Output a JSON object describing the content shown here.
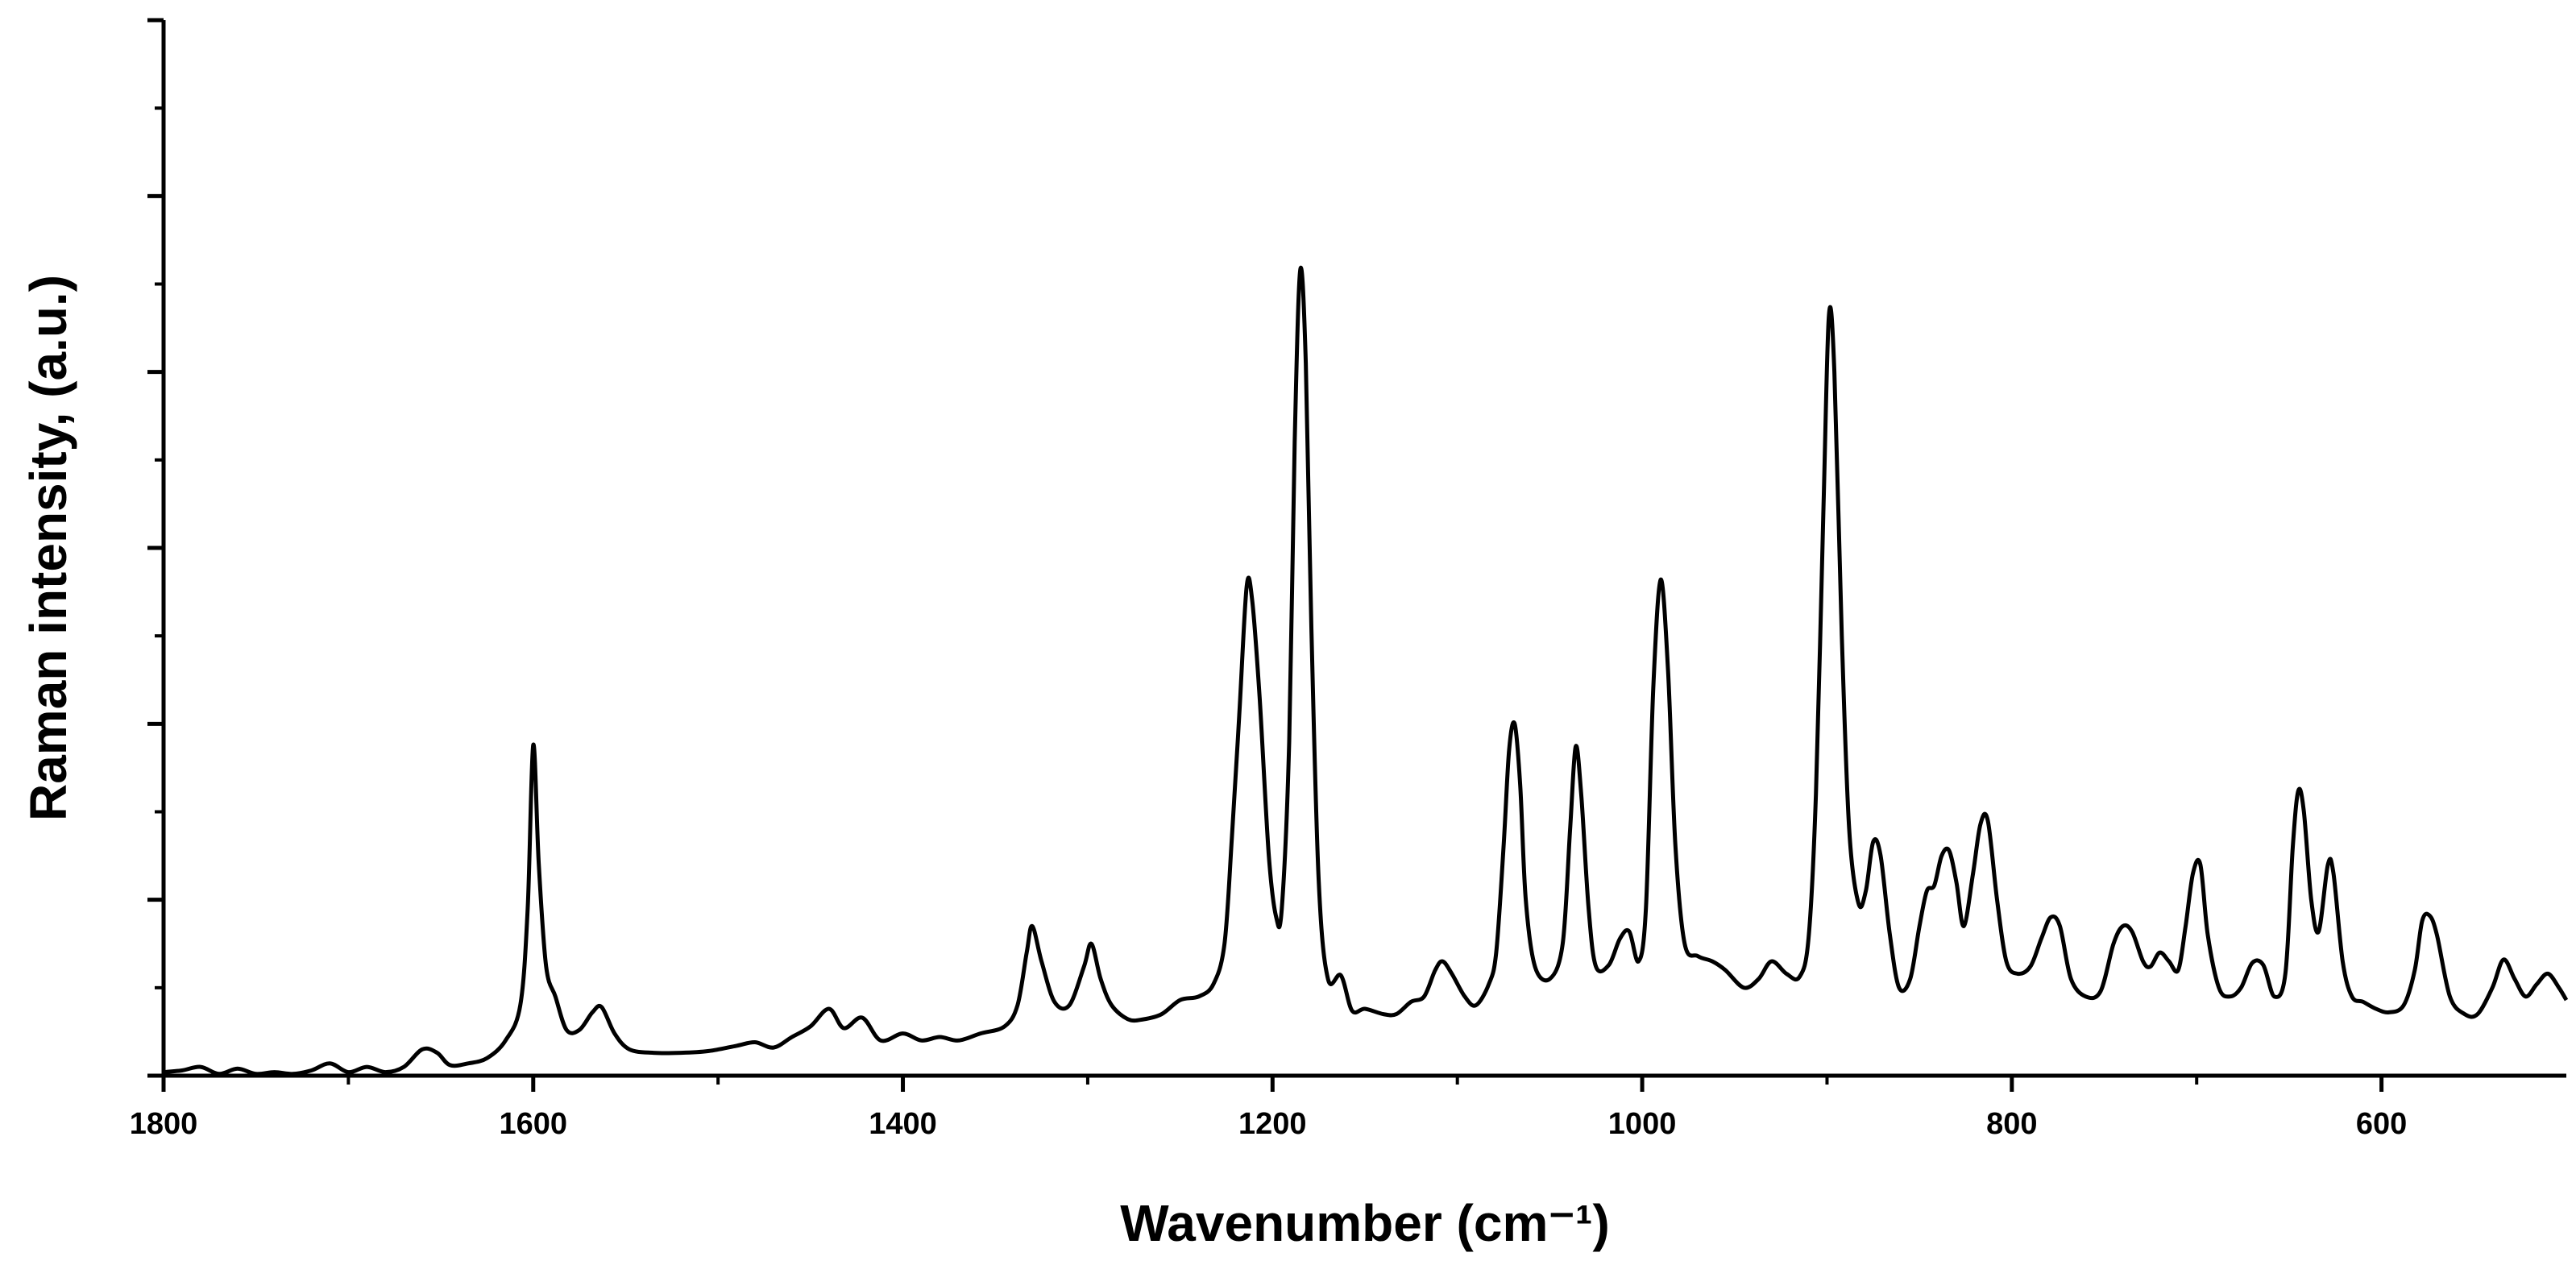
{
  "chart_data": {
    "type": "line",
    "xlabel": "Wavenumber (cm⁻¹)",
    "ylabel": "Raman intensity, (a.u.)",
    "xlim": [
      1800,
      500
    ],
    "x_reversed": true,
    "ylim": [
      0,
      6
    ],
    "x_ticks": [
      1800,
      1600,
      1400,
      1200,
      1000,
      800,
      600
    ],
    "y_tick_labels_shown": false,
    "grid": false,
    "legend": "none",
    "line_color": "#000000",
    "series": [
      {
        "points": [
          [
            1800,
            0.02
          ],
          [
            1790,
            0.03
          ],
          [
            1780,
            0.05
          ],
          [
            1770,
            0.01
          ],
          [
            1760,
            0.04
          ],
          [
            1750,
            0.01
          ],
          [
            1740,
            0.02
          ],
          [
            1730,
            0.01
          ],
          [
            1720,
            0.03
          ],
          [
            1710,
            0.07
          ],
          [
            1700,
            0.02
          ],
          [
            1690,
            0.05
          ],
          [
            1680,
            0.02
          ],
          [
            1670,
            0.05
          ],
          [
            1660,
            0.15
          ],
          [
            1652,
            0.13
          ],
          [
            1645,
            0.06
          ],
          [
            1635,
            0.07
          ],
          [
            1625,
            0.1
          ],
          [
            1615,
            0.2
          ],
          [
            1607,
            0.4
          ],
          [
            1603,
            0.95
          ],
          [
            1600,
            1.88
          ],
          [
            1597,
            1.2
          ],
          [
            1593,
            0.62
          ],
          [
            1588,
            0.45
          ],
          [
            1582,
            0.26
          ],
          [
            1575,
            0.26
          ],
          [
            1568,
            0.36
          ],
          [
            1563,
            0.39
          ],
          [
            1556,
            0.24
          ],
          [
            1548,
            0.15
          ],
          [
            1535,
            0.13
          ],
          [
            1520,
            0.13
          ],
          [
            1505,
            0.14
          ],
          [
            1490,
            0.17
          ],
          [
            1480,
            0.19
          ],
          [
            1470,
            0.16
          ],
          [
            1460,
            0.22
          ],
          [
            1450,
            0.28
          ],
          [
            1440,
            0.38
          ],
          [
            1432,
            0.27
          ],
          [
            1422,
            0.33
          ],
          [
            1412,
            0.2
          ],
          [
            1400,
            0.24
          ],
          [
            1390,
            0.2
          ],
          [
            1380,
            0.22
          ],
          [
            1370,
            0.2
          ],
          [
            1358,
            0.24
          ],
          [
            1345,
            0.28
          ],
          [
            1338,
            0.4
          ],
          [
            1333,
            0.7
          ],
          [
            1330,
            0.85
          ],
          [
            1325,
            0.65
          ],
          [
            1318,
            0.42
          ],
          [
            1310,
            0.4
          ],
          [
            1302,
            0.62
          ],
          [
            1298,
            0.75
          ],
          [
            1293,
            0.55
          ],
          [
            1287,
            0.4
          ],
          [
            1278,
            0.32
          ],
          [
            1270,
            0.32
          ],
          [
            1260,
            0.35
          ],
          [
            1250,
            0.43
          ],
          [
            1240,
            0.45
          ],
          [
            1232,
            0.52
          ],
          [
            1226,
            0.75
          ],
          [
            1222,
            1.35
          ],
          [
            1218,
            2.05
          ],
          [
            1214,
            2.78
          ],
          [
            1211,
            2.7
          ],
          [
            1207,
            2.15
          ],
          [
            1202,
            1.25
          ],
          [
            1198,
            0.9
          ],
          [
            1195,
            0.95
          ],
          [
            1191,
            1.9
          ],
          [
            1188,
            3.6
          ],
          [
            1185,
            4.58
          ],
          [
            1182,
            4.05
          ],
          [
            1179,
            2.55
          ],
          [
            1175,
            1.1
          ],
          [
            1170,
            0.55
          ],
          [
            1163,
            0.57
          ],
          [
            1157,
            0.37
          ],
          [
            1150,
            0.38
          ],
          [
            1140,
            0.35
          ],
          [
            1133,
            0.35
          ],
          [
            1125,
            0.42
          ],
          [
            1118,
            0.45
          ],
          [
            1112,
            0.6
          ],
          [
            1108,
            0.65
          ],
          [
            1103,
            0.58
          ],
          [
            1096,
            0.45
          ],
          [
            1090,
            0.4
          ],
          [
            1083,
            0.52
          ],
          [
            1079,
            0.7
          ],
          [
            1075,
            1.3
          ],
          [
            1072,
            1.85
          ],
          [
            1069,
            2.0
          ],
          [
            1066,
            1.65
          ],
          [
            1063,
            1.0
          ],
          [
            1058,
            0.62
          ],
          [
            1050,
            0.55
          ],
          [
            1043,
            0.75
          ],
          [
            1039,
            1.4
          ],
          [
            1036,
            1.87
          ],
          [
            1033,
            1.6
          ],
          [
            1029,
            0.95
          ],
          [
            1025,
            0.62
          ],
          [
            1018,
            0.63
          ],
          [
            1012,
            0.78
          ],
          [
            1007,
            0.82
          ],
          [
            1002,
            0.65
          ],
          [
            998,
            0.95
          ],
          [
            994,
            2.2
          ],
          [
            990,
            2.82
          ],
          [
            986,
            2.3
          ],
          [
            982,
            1.3
          ],
          [
            977,
            0.75
          ],
          [
            970,
            0.68
          ],
          [
            962,
            0.65
          ],
          [
            955,
            0.6
          ],
          [
            945,
            0.5
          ],
          [
            937,
            0.55
          ],
          [
            930,
            0.65
          ],
          [
            922,
            0.58
          ],
          [
            915,
            0.56
          ],
          [
            910,
            0.78
          ],
          [
            906,
            1.6
          ],
          [
            902,
            3.2
          ],
          [
            899,
            4.32
          ],
          [
            896,
            4.0
          ],
          [
            892,
            2.5
          ],
          [
            888,
            1.4
          ],
          [
            883,
            0.98
          ],
          [
            879,
            1.05
          ],
          [
            875,
            1.33
          ],
          [
            871,
            1.25
          ],
          [
            866,
            0.8
          ],
          [
            861,
            0.5
          ],
          [
            855,
            0.55
          ],
          [
            850,
            0.85
          ],
          [
            846,
            1.05
          ],
          [
            842,
            1.08
          ],
          [
            838,
            1.25
          ],
          [
            834,
            1.28
          ],
          [
            830,
            1.1
          ],
          [
            826,
            0.85
          ],
          [
            821,
            1.15
          ],
          [
            817,
            1.43
          ],
          [
            813,
            1.45
          ],
          [
            808,
            1.0
          ],
          [
            803,
            0.65
          ],
          [
            797,
            0.58
          ],
          [
            790,
            0.62
          ],
          [
            784,
            0.78
          ],
          [
            779,
            0.9
          ],
          [
            774,
            0.85
          ],
          [
            768,
            0.55
          ],
          [
            760,
            0.45
          ],
          [
            752,
            0.48
          ],
          [
            745,
            0.75
          ],
          [
            740,
            0.85
          ],
          [
            735,
            0.82
          ],
          [
            729,
            0.65
          ],
          [
            725,
            0.62
          ],
          [
            720,
            0.7
          ],
          [
            715,
            0.65
          ],
          [
            710,
            0.6
          ],
          [
            706,
            0.85
          ],
          [
            702,
            1.15
          ],
          [
            698,
            1.2
          ],
          [
            694,
            0.8
          ],
          [
            688,
            0.5
          ],
          [
            682,
            0.45
          ],
          [
            676,
            0.5
          ],
          [
            670,
            0.64
          ],
          [
            664,
            0.63
          ],
          [
            658,
            0.45
          ],
          [
            652,
            0.58
          ],
          [
            648,
            1.3
          ],
          [
            645,
            1.62
          ],
          [
            642,
            1.5
          ],
          [
            638,
            1.0
          ],
          [
            634,
            0.82
          ],
          [
            629,
            1.2
          ],
          [
            626,
            1.15
          ],
          [
            621,
            0.65
          ],
          [
            616,
            0.45
          ],
          [
            610,
            0.42
          ],
          [
            603,
            0.38
          ],
          [
            596,
            0.36
          ],
          [
            588,
            0.4
          ],
          [
            582,
            0.6
          ],
          [
            578,
            0.88
          ],
          [
            574,
            0.91
          ],
          [
            570,
            0.8
          ],
          [
            563,
            0.45
          ],
          [
            555,
            0.35
          ],
          [
            548,
            0.35
          ],
          [
            540,
            0.5
          ],
          [
            534,
            0.66
          ],
          [
            528,
            0.55
          ],
          [
            522,
            0.45
          ],
          [
            516,
            0.52
          ],
          [
            510,
            0.58
          ],
          [
            504,
            0.5
          ],
          [
            500,
            0.43
          ]
        ]
      }
    ]
  }
}
